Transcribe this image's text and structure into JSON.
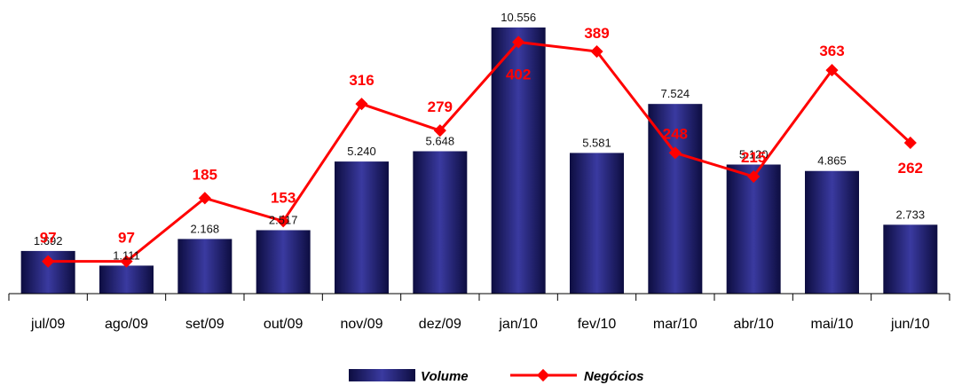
{
  "chart_data": {
    "type": "bar",
    "categories": [
      "jul/09",
      "ago/09",
      "set/09",
      "out/09",
      "nov/09",
      "dez/09",
      "jan/10",
      "fev/10",
      "mar/10",
      "abr/10",
      "mai/10",
      "jun/10"
    ],
    "series": [
      {
        "name": "Volume",
        "type": "bar",
        "values": [
          1692,
          1111,
          2168,
          2517,
          5240,
          5648,
          10556,
          5581,
          7524,
          5120,
          4865,
          2733
        ],
        "labels": [
          "1.692",
          "1.111",
          "2.168",
          "2.517",
          "5.240",
          "5.648",
          "10.556",
          "5.581",
          "7.524",
          "5.120",
          "4.865",
          "2.733"
        ],
        "color": "#1c1c6e"
      },
      {
        "name": "Negócios",
        "type": "line",
        "values": [
          97,
          97,
          185,
          153,
          316,
          279,
          402,
          389,
          248,
          215,
          363,
          262
        ],
        "labels": [
          "97",
          "97",
          "185",
          "153",
          "316",
          "279",
          "402",
          "389",
          "248",
          "215",
          "363",
          "262"
        ],
        "color": "#ff0000"
      }
    ],
    "ylim_volume": [
      0,
      11000
    ],
    "ylim_negocios": [
      0,
      600
    ],
    "legend_position": "bottom",
    "grid": false
  }
}
